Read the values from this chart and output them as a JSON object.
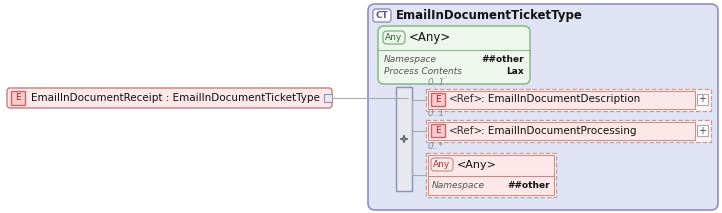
{
  "bg_color": "#ffffff",
  "ct_bg": "#dfe3f3",
  "ct_border": "#9090bb",
  "ct_label": "CT",
  "ct_title": "EmailInDocumentTicketType",
  "any_top_bg": "#edf7ed",
  "any_top_border": "#88b888",
  "any_top_label": "Any",
  "any_top_title": "<Any>",
  "any_top_ns_label": "Namespace",
  "any_top_ns_value": "##other",
  "any_top_pc_label": "Process Contents",
  "any_top_pc_value": "Lax",
  "left_box_bg": "#fce8e8",
  "left_box_border": "#cc8888",
  "left_label": "E",
  "left_text": "EmailInDocumentReceipt : EmailInDocumentTicketType",
  "seq_bg": "#e8e8f0",
  "seq_border": "#9090b0",
  "elem1_cardinality": "0..1",
  "elem1_label": "E",
  "elem1_ref": "<Ref>",
  "elem1_name": ": EmailInDocumentDescription",
  "elem1_bg": "#fce8e8",
  "elem1_border": "#cc8888",
  "elem2_cardinality": "0..1",
  "elem2_label": "E",
  "elem2_ref": "<Ref>",
  "elem2_name": ": EmailInDocumentProcessing",
  "elem2_bg": "#fce8e8",
  "elem2_border": "#cc8888",
  "any_bot_cardinality": "0..*",
  "any_bot_label": "Any",
  "any_bot_title": "<Any>",
  "any_bot_ns_label": "Namespace",
  "any_bot_ns_value": "##other",
  "any_bot_bg": "#fce8e8",
  "any_bot_border": "#cc8888",
  "e_label_bg": "#f8cccc",
  "e_label_border": "#cc6666",
  "plus_bg": "#ffffff",
  "plus_border": "#aaaaaa",
  "line_color": "#aaaaaa",
  "card_color": "#888888",
  "dashed_border": "#cc9999"
}
